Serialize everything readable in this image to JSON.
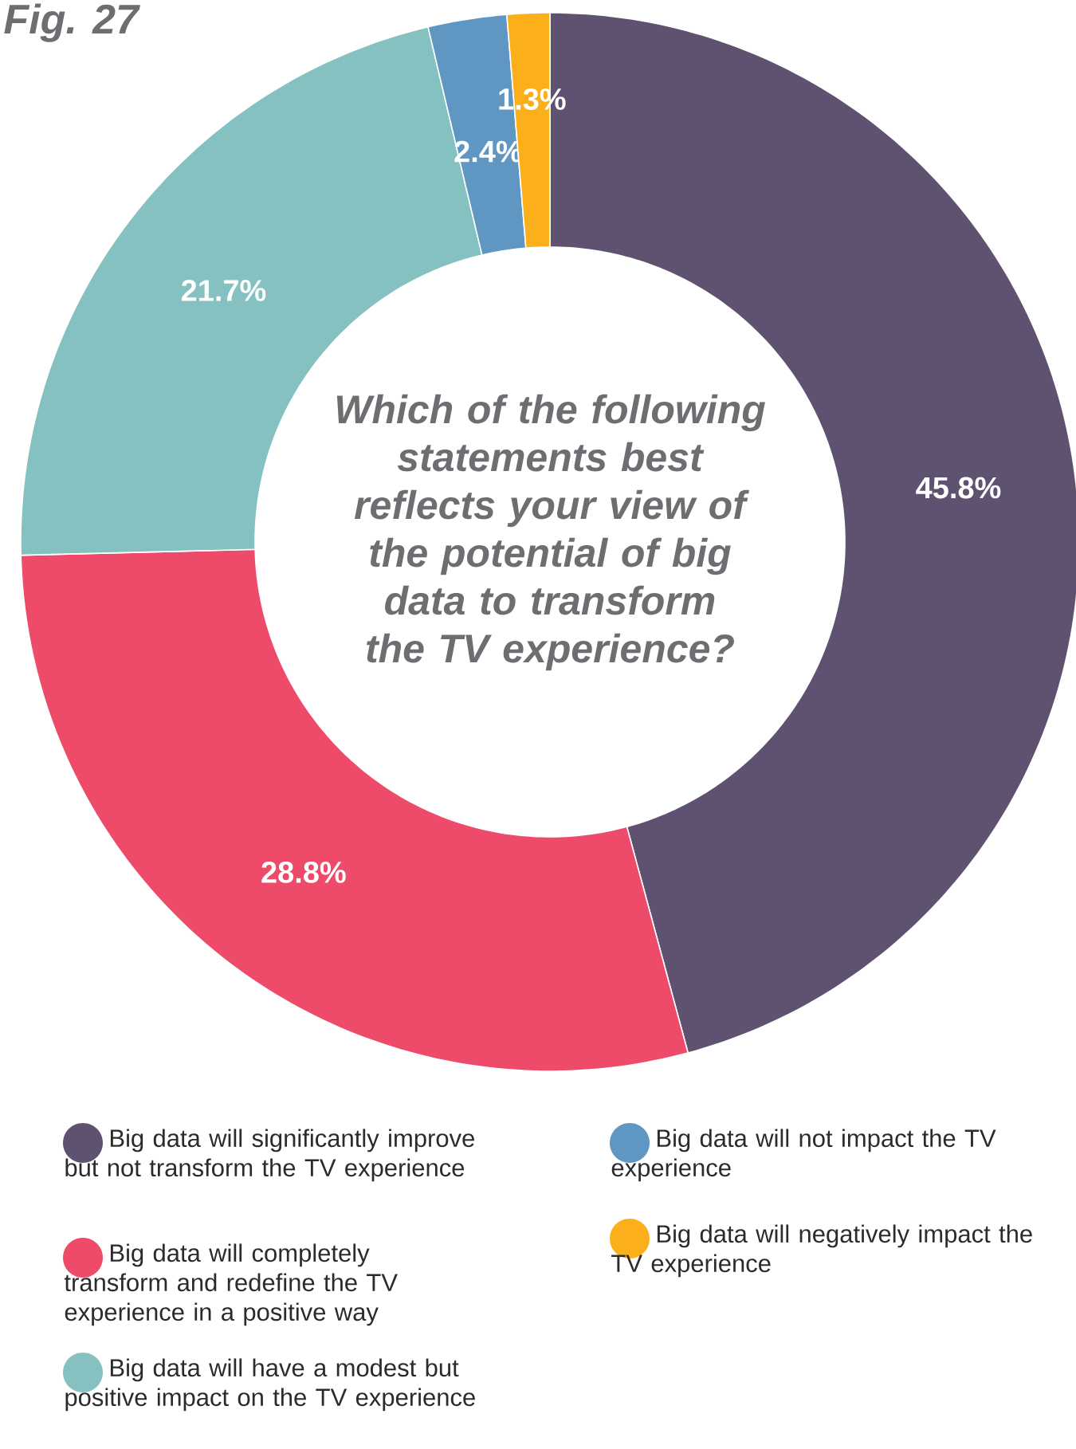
{
  "chart_data": {
    "type": "donut",
    "title": "Fig. 27",
    "subtitle": "Which of the following statements best reflects your view of the potential of big data to transform the TV experience?",
    "categories": [
      "Big data will significantly improve but not transform the TV experience",
      "Big data will completely transform and redefine the TV experience in a positive way",
      "Big data will have a modest but positive impact on the TV experience",
      "Big data will not impact the TV experience",
      "Big data will negatively impact the TV experience"
    ],
    "values": [
      45.8,
      28.8,
      21.7,
      2.4,
      1.3
    ],
    "value_labels": [
      "45.8%",
      "28.8%",
      "21.7%",
      "2.4%",
      "1.3%"
    ],
    "colors": [
      "#5e5270",
      "#ee4a69",
      "#84c1c0",
      "#6096c2",
      "#fbb01b"
    ],
    "legend": "bottom"
  }
}
